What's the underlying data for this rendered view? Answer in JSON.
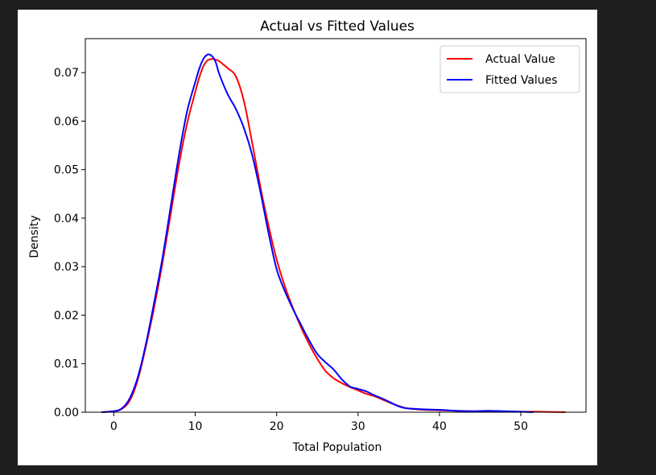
{
  "chart_data": {
    "type": "line",
    "title": "Actual vs Fitted Values",
    "xlabel": "Total Population",
    "ylabel": "Density",
    "xlim": [
      -3.5,
      58
    ],
    "ylim": [
      0,
      0.077
    ],
    "xticks": [
      0,
      10,
      20,
      30,
      40,
      50
    ],
    "xtick_labels": [
      "0",
      "10",
      "20",
      "30",
      "40",
      "50"
    ],
    "yticks": [
      0.0,
      0.01,
      0.02,
      0.03,
      0.04,
      0.05,
      0.06,
      0.07
    ],
    "ytick_labels": [
      "0.00",
      "0.01",
      "0.02",
      "0.03",
      "0.04",
      "0.05",
      "0.06",
      "0.07"
    ],
    "grid": false,
    "legend": "top-right",
    "series": [
      {
        "name": "Actual Value",
        "color": "#ff0000",
        "x": [
          -1.5,
          0,
          1,
          2,
          3,
          4,
          5,
          6,
          7,
          8,
          9,
          10,
          10.5,
          11,
          11.5,
          12,
          12.5,
          13,
          13.5,
          14,
          15,
          16,
          17,
          18,
          19,
          20,
          21,
          22,
          23,
          24,
          25,
          26,
          27,
          28,
          29,
          30,
          31,
          32,
          33,
          34,
          35,
          36,
          38,
          40,
          42,
          44,
          46,
          48,
          50,
          52,
          54,
          55.5
        ],
        "y": [
          0.0,
          0.0002,
          0.0007,
          0.0025,
          0.007,
          0.014,
          0.022,
          0.031,
          0.041,
          0.051,
          0.0595,
          0.066,
          0.069,
          0.0713,
          0.0725,
          0.0728,
          0.0727,
          0.0723,
          0.0716,
          0.0709,
          0.0692,
          0.064,
          0.0555,
          0.0465,
          0.0385,
          0.0315,
          0.026,
          0.0215,
          0.0175,
          0.014,
          0.011,
          0.0085,
          0.007,
          0.006,
          0.0052,
          0.0045,
          0.0038,
          0.0033,
          0.0026,
          0.0019,
          0.0013,
          0.0008,
          0.0005,
          0.0004,
          0.0003,
          0.0002,
          0.0002,
          0.0001,
          0.0001,
          0.0001,
          5e-05,
          0.0
        ]
      },
      {
        "name": "Fitted Values",
        "color": "#0000ff",
        "x": [
          -1.5,
          0,
          1,
          2,
          3,
          4,
          5,
          6,
          7,
          8,
          9,
          10,
          10.5,
          11,
          11.5,
          12,
          12.5,
          13,
          14,
          15,
          16,
          17,
          18,
          19,
          20,
          21,
          22,
          23,
          24,
          25,
          26,
          27,
          28,
          29,
          30,
          31,
          32,
          33,
          34,
          35,
          36,
          38,
          40,
          42,
          44,
          46,
          48,
          50,
          51.5
        ],
        "y": [
          0.0,
          0.0002,
          0.0008,
          0.003,
          0.0075,
          0.0145,
          0.023,
          0.032,
          0.0425,
          0.053,
          0.062,
          0.068,
          0.0708,
          0.0728,
          0.0737,
          0.0735,
          0.0722,
          0.0695,
          0.0655,
          0.0625,
          0.0585,
          0.053,
          0.0455,
          0.037,
          0.0295,
          0.025,
          0.0213,
          0.018,
          0.0148,
          0.012,
          0.0103,
          0.0088,
          0.0068,
          0.0053,
          0.0048,
          0.0043,
          0.0035,
          0.0028,
          0.002,
          0.0012,
          0.0008,
          0.0006,
          0.0005,
          0.0003,
          0.0002,
          0.0003,
          0.0002,
          0.0001,
          0.0
        ]
      }
    ]
  }
}
